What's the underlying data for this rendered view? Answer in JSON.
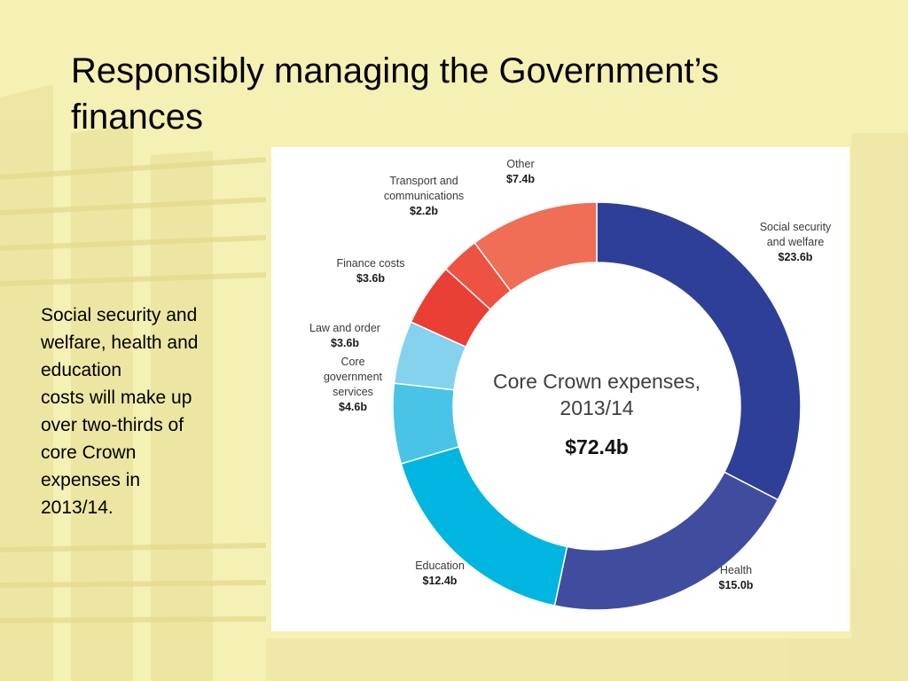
{
  "slide": {
    "title_line1": "Responsibly managing the Government’s",
    "title_line2": "finances",
    "body_lines": [
      "Social security and",
      "welfare, health and",
      "education",
      "costs will make up",
      "over two-thirds of",
      "core Crown",
      "expenses in",
      "2013/14."
    ]
  },
  "chart_data": {
    "type": "pie",
    "donut": true,
    "title": "Core Crown expenses, 2013/14",
    "center_title_lines": [
      "Core Crown expenses,",
      "2013/14"
    ],
    "center_total": "$72.4b",
    "slices": [
      {
        "name_lines": [
          "Social security",
          "and welfare"
        ],
        "label": "$23.6b",
        "value": 23.6,
        "color": "#2e3f98"
      },
      {
        "name_lines": [
          "Health"
        ],
        "label": "$15.0b",
        "value": 15.0,
        "color": "#404d9f"
      },
      {
        "name_lines": [
          "Education"
        ],
        "label": "$12.4b",
        "value": 12.4,
        "color": "#00b5e0"
      },
      {
        "name_lines": [
          "Core",
          "government",
          "services"
        ],
        "label": "$4.6b",
        "value": 4.6,
        "color": "#49c3e6"
      },
      {
        "name_lines": [
          "Law and order"
        ],
        "label": "$3.6b",
        "value": 3.6,
        "color": "#84d2ee"
      },
      {
        "name_lines": [
          "Finance costs"
        ],
        "label": "$3.6b",
        "value": 3.6,
        "color": "#ea3f35"
      },
      {
        "name_lines": [
          "Transport and",
          "communications"
        ],
        "label": "$2.2b",
        "value": 2.2,
        "color": "#ee5243"
      },
      {
        "name_lines": [
          "Other"
        ],
        "label": "$7.4b",
        "value": 7.4,
        "color": "#f06e56"
      }
    ]
  }
}
